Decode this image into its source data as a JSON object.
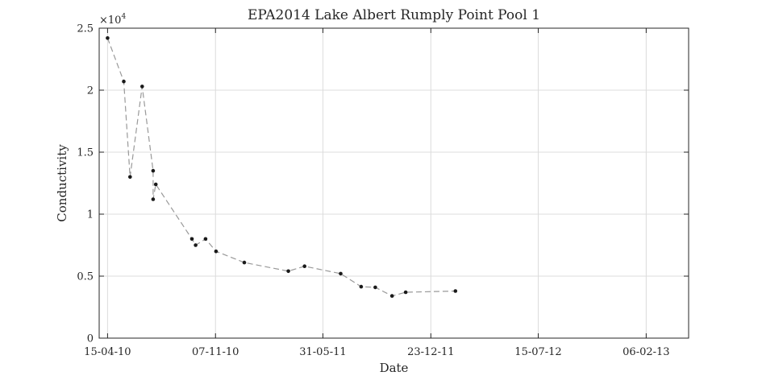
{
  "chart_data": {
    "type": "line",
    "title": "EPA2014 Lake Albert Rumply Point Pool 1",
    "xlabel": "Date",
    "ylabel": "Conductivity",
    "y_exponent_label": "×10",
    "y_exponent_power": "4",
    "grid": true,
    "legend": "none",
    "xlim": [
      "2010-03-30",
      "2013-04-28"
    ],
    "ylim": [
      0,
      25000
    ],
    "x_ticks": [
      {
        "date": "2010-04-15",
        "label": "15-04-10"
      },
      {
        "date": "2010-11-07",
        "label": "07-11-10"
      },
      {
        "date": "2011-05-31",
        "label": "31-05-11"
      },
      {
        "date": "2011-12-23",
        "label": "23-12-11"
      },
      {
        "date": "2012-07-15",
        "label": "15-07-12"
      },
      {
        "date": "2013-02-06",
        "label": "06-02-13"
      }
    ],
    "y_ticks": [
      {
        "value": 0,
        "label": "0"
      },
      {
        "value": 5000,
        "label": "0.5"
      },
      {
        "value": 10000,
        "label": "1"
      },
      {
        "value": 15000,
        "label": "1.5"
      },
      {
        "value": 20000,
        "label": "2"
      },
      {
        "value": 25000,
        "label": "2.5"
      }
    ],
    "series": [
      {
        "line_color": "#999999",
        "marker_color": "#1a1a1a",
        "points": [
          {
            "x": "2010-04-15",
            "y": 24200
          },
          {
            "x": "2010-05-16",
            "y": 20700
          },
          {
            "x": "2010-05-28",
            "y": 13000
          },
          {
            "x": "2010-06-20",
            "y": 20300
          },
          {
            "x": "2010-07-11",
            "y": 13500
          },
          {
            "x": "2010-07-11",
            "y": 11200
          },
          {
            "x": "2010-07-16",
            "y": 12400
          },
          {
            "x": "2010-09-23",
            "y": 8000
          },
          {
            "x": "2010-09-30",
            "y": 7500
          },
          {
            "x": "2010-10-19",
            "y": 8000
          },
          {
            "x": "2010-11-08",
            "y": 7000
          },
          {
            "x": "2011-01-01",
            "y": 6100
          },
          {
            "x": "2011-03-26",
            "y": 5400
          },
          {
            "x": "2011-04-26",
            "y": 5800
          },
          {
            "x": "2011-07-04",
            "y": 5200
          },
          {
            "x": "2011-08-12",
            "y": 4150
          },
          {
            "x": "2011-09-08",
            "y": 4100
          },
          {
            "x": "2011-10-10",
            "y": 3400
          },
          {
            "x": "2011-11-05",
            "y": 3700
          },
          {
            "x": "2012-02-08",
            "y": 3800
          }
        ]
      }
    ]
  }
}
